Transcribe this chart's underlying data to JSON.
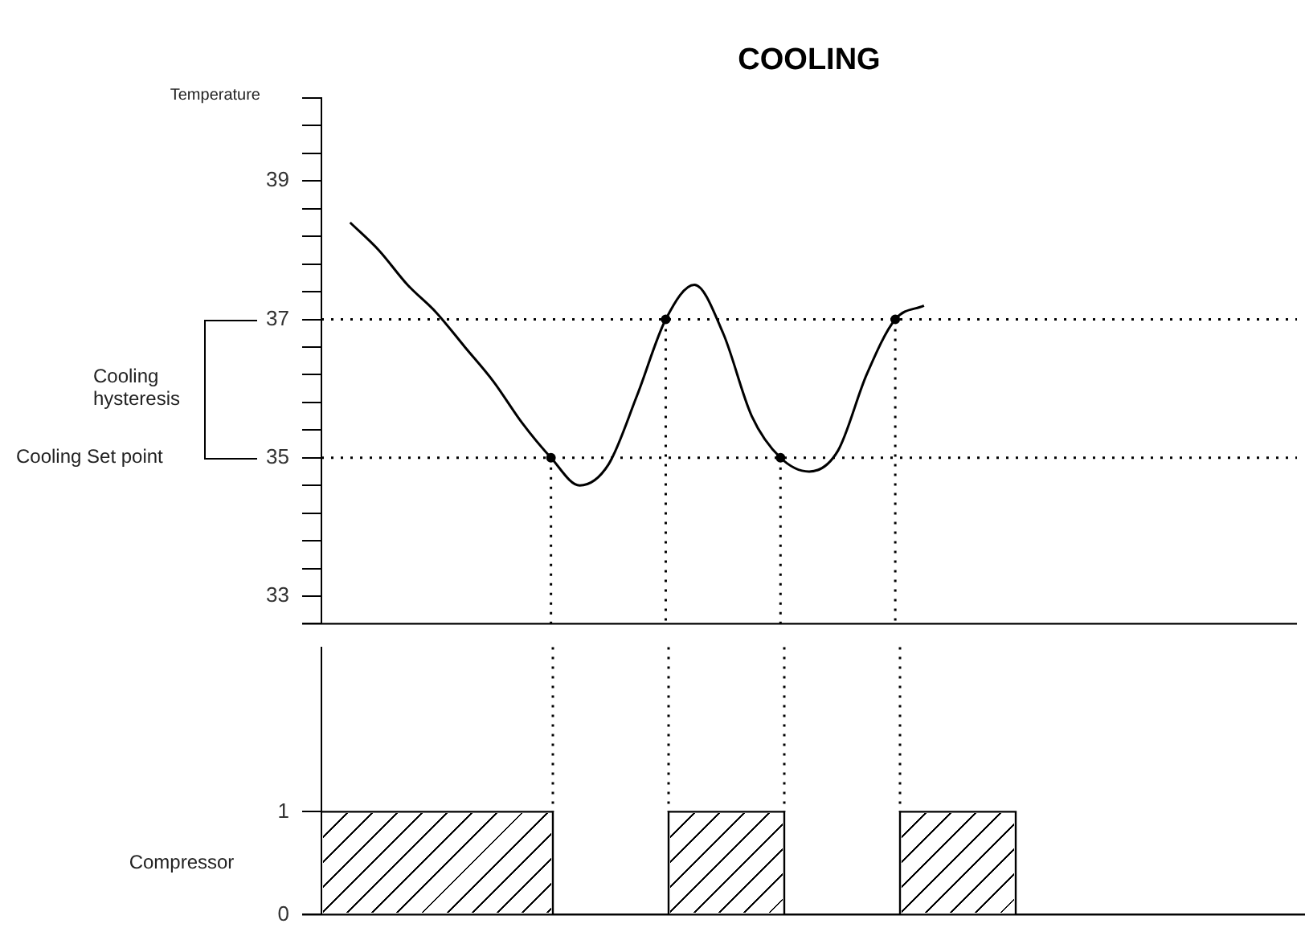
{
  "chart_data": [
    {
      "type": "line",
      "title": "COOLING",
      "ylabel": "Temperature",
      "annotations": [
        "Cooling hysteresis"
      ],
      "categories": [
        null,
        null,
        null,
        null,
        null,
        null,
        null,
        null,
        null,
        null,
        null,
        null,
        null,
        null,
        null,
        null,
        null,
        null,
        null,
        null,
        null,
        null,
        null,
        null,
        null,
        null,
        null,
        null,
        null,
        null,
        null,
        null,
        null,
        null,
        null
      ],
      "series": [
        {
          "type": "line",
          "color": "#000000",
          "values": [
            null,
            38.4,
            38.0,
            37.5,
            37.1,
            36.6,
            36.1,
            35.5,
            35.0,
            34.6,
            34.9,
            35.9,
            37.0,
            37.5,
            36.8,
            35.6,
            35.0,
            34.8,
            35.1,
            36.2,
            37.0,
            37.2,
            null,
            null,
            null,
            null,
            null,
            null,
            null,
            null,
            null,
            null,
            null,
            null,
            null
          ]
        },
        {
          "type": "scatter",
          "color": "#000000",
          "marker": "circle",
          "values": [
            null,
            null,
            null,
            null,
            null,
            null,
            null,
            null,
            35,
            null,
            null,
            null,
            37,
            null,
            null,
            null,
            35,
            null,
            null,
            null,
            37,
            null,
            null,
            null,
            null,
            null,
            null,
            null,
            null,
            null,
            null,
            null,
            null,
            null,
            null
          ]
        }
      ],
      "ylim": [
        32.6,
        40.2
      ],
      "yticks": [
        {
          "value": 32.6,
          "label": null
        },
        33,
        {
          "value": 33.4,
          "label": null
        },
        {
          "value": 33.8,
          "label": null
        },
        {
          "value": 34.2,
          "label": null
        },
        {
          "value": 34.6,
          "label": null
        },
        35,
        {
          "value": 35.4,
          "label": null
        },
        {
          "value": 35.8,
          "label": null
        },
        {
          "value": 36.2,
          "label": null
        },
        {
          "value": 36.6,
          "label": null
        },
        37,
        {
          "value": 37.4,
          "label": null
        },
        {
          "value": 37.8,
          "label": null
        },
        {
          "value": 38.2,
          "label": null
        },
        {
          "value": 38.6,
          "label": null
        },
        39,
        {
          "value": 39.4,
          "label": null
        },
        {
          "value": 39.8,
          "label": null
        },
        {
          "value": 40.2,
          "label": null
        }
      ],
      "ref_lines": [
        {
          "axis": "y",
          "value": 37,
          "line_style": "dotted",
          "color": "#000000"
        },
        {
          "axis": "y",
          "value": 35,
          "label": "Cooling Set point",
          "line_style": "dotted",
          "color": "#000000"
        }
      ],
      "tick_labels": "y"
    },
    {
      "type": "step",
      "ylabel": "Compressor",
      "categories": [
        null,
        null,
        null,
        null,
        null,
        null,
        null,
        null,
        null,
        null,
        null,
        null,
        null,
        null,
        null,
        null,
        null,
        null,
        null,
        null,
        null,
        null,
        null,
        null,
        null,
        null,
        null,
        null,
        null,
        null,
        null,
        null,
        null,
        null,
        null
      ],
      "series": [
        {
          "color": "#000000",
          "values": [
            1,
            1,
            1,
            1,
            1,
            1,
            1,
            1,
            0,
            0,
            0,
            0,
            1,
            1,
            1,
            1,
            0,
            0,
            0,
            0,
            1,
            1,
            1,
            1,
            0,
            0,
            0,
            0,
            0,
            0,
            0,
            0,
            0,
            0,
            0
          ]
        }
      ],
      "ylim": [
        0,
        2.6
      ],
      "yticks": [
        0,
        1
      ],
      "tick_labels": "y"
    }
  ]
}
